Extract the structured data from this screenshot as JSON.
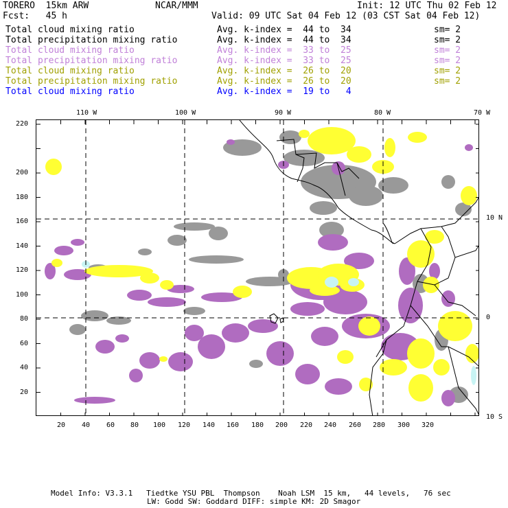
{
  "header": {
    "model": "TORERO  15km ARW",
    "org": "NCAR/MMM",
    "init": "Init: 12 UTC Thu 02 Feb 12",
    "fcst": "Fcst:   45 h",
    "valid": "Valid: 09 UTC Sat 04 Feb 12 (03 CST Sat 04 Feb 12)"
  },
  "legend": [
    {
      "field": "Total cloud mixing ratio",
      "index": "Avg. k-index =  44 to  34",
      "sm": "sm= 2",
      "color": "#000000"
    },
    {
      "field": "Total precipitation mixing ratio",
      "index": "Avg. k-index =  44 to  34",
      "sm": "sm= 2",
      "color": "#000000"
    },
    {
      "field": "Total cloud mixing ratio",
      "index": "Avg. k-index =  33 to  25",
      "sm": "sm= 2",
      "color": "#c080d8"
    },
    {
      "field": "Total precipitation mixing ratio",
      "index": "Avg. k-index =  33 to  25",
      "sm": "sm= 2",
      "color": "#c080d8"
    },
    {
      "field": "Total cloud mixing ratio",
      "index": "Avg. k-index =  26 to  20",
      "sm": "sm= 2",
      "color": "#a0a000"
    },
    {
      "field": "Total precipitation mixing ratio",
      "index": "Avg. k-index =  26 to  20",
      "sm": "sm= 2",
      "color": "#a0a000"
    },
    {
      "field": "Total cloud mixing ratio",
      "index": "Avg. k-index =  19 to   4",
      "sm": "",
      "color": "#0000ff"
    }
  ],
  "map": {
    "lon_labels": [
      "110 W",
      "100 W",
      "90 W",
      "80 W",
      "70 W"
    ],
    "lat_labels": [
      "10 N",
      "0",
      "10 S"
    ],
    "x_ticks": [
      "20",
      "40",
      "60",
      "80",
      "100",
      "120",
      "140",
      "160",
      "180",
      "200",
      "220",
      "240",
      "260",
      "280",
      "300",
      "320"
    ],
    "y_ticks": [
      "20",
      "40",
      "60",
      "80",
      "100",
      "120",
      "140",
      "160",
      "180",
      "200",
      "220"
    ],
    "colors": {
      "gray": "#999999",
      "purple": "#b06cc0",
      "yellow": "#ffff33",
      "cyan": "#c8f4f4",
      "grid": "#000000"
    }
  },
  "footer": {
    "line1": "Model Info: V3.3.1   Tiedtke YSU PBL  Thompson    Noah LSM  15 km,   44 levels,   76 sec",
    "line2": "LW: Godd SW: Goddard DIFF: simple KM: 2D Smagor"
  }
}
